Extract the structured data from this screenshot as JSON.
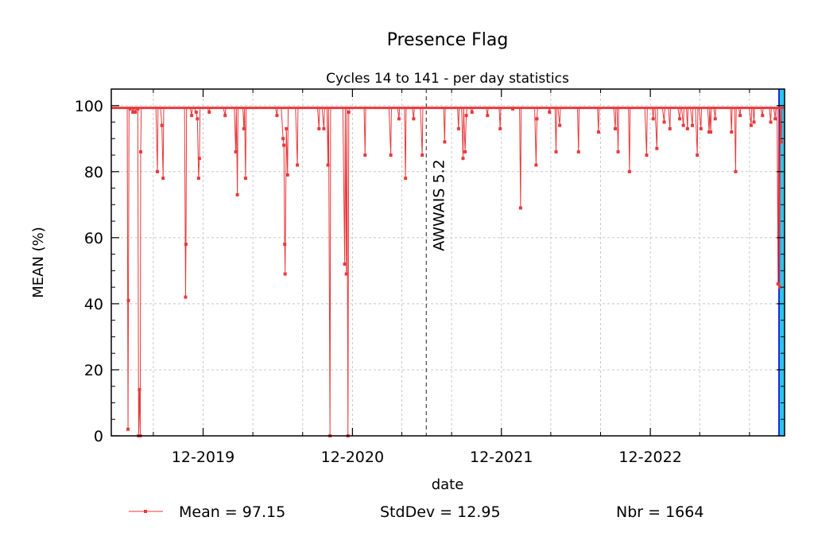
{
  "chart_data": {
    "type": "line",
    "title": "Presence Flag",
    "subtitle": "Cycles 14 to 141 - per day statistics",
    "xlabel": "date",
    "ylabel": "MEAN (%)",
    "ylim": [
      0,
      105
    ],
    "xlim": [
      "2019-04-20",
      "2023-10-26"
    ],
    "x_tick_labels": [
      "12-2019",
      "12-2020",
      "12-2021",
      "12-2022"
    ],
    "y_tick_labels": [
      "0",
      "20",
      "40",
      "60",
      "80",
      "100"
    ],
    "grid": true,
    "vertical_marker": {
      "label": "AWWAIS 5.2",
      "date": "2021-05-31"
    },
    "baseline_value": 99.3,
    "series": [
      {
        "name": "Mean",
        "color": "#e8393c",
        "points": [
          [
            "2019-05-31",
            2
          ],
          [
            "2019-06-01",
            41
          ],
          [
            "2019-06-05",
            99
          ],
          [
            "2019-06-12",
            98
          ],
          [
            "2019-06-18",
            98
          ],
          [
            "2019-06-24",
            99
          ],
          [
            "2019-06-26",
            0
          ],
          [
            "2019-06-28",
            14
          ],
          [
            "2019-06-30",
            0
          ],
          [
            "2019-07-01",
            86
          ],
          [
            "2019-08-11",
            80
          ],
          [
            "2019-08-22",
            94
          ],
          [
            "2019-08-25",
            78
          ],
          [
            "2019-10-19",
            42
          ],
          [
            "2019-10-20",
            58
          ],
          [
            "2019-11-03",
            97
          ],
          [
            "2019-11-14",
            98
          ],
          [
            "2019-11-17",
            96
          ],
          [
            "2019-11-20",
            78
          ],
          [
            "2019-11-22",
            84
          ],
          [
            "2019-12-16",
            98
          ],
          [
            "2020-01-24",
            97
          ],
          [
            "2020-02-19",
            86
          ],
          [
            "2020-02-23",
            73
          ],
          [
            "2020-03-10",
            93
          ],
          [
            "2020-03-14",
            78
          ],
          [
            "2020-05-30",
            97
          ],
          [
            "2020-06-14",
            90
          ],
          [
            "2020-06-16",
            88
          ],
          [
            "2020-06-18",
            58
          ],
          [
            "2020-06-19",
            49
          ],
          [
            "2020-06-22",
            93
          ],
          [
            "2020-06-25",
            79
          ],
          [
            "2020-07-19",
            82
          ],
          [
            "2020-09-10",
            93
          ],
          [
            "2020-09-22",
            93
          ],
          [
            "2020-10-02",
            82
          ],
          [
            "2020-10-07",
            0
          ],
          [
            "2020-11-12",
            52
          ],
          [
            "2020-11-16",
            49
          ],
          [
            "2020-11-20",
            0
          ],
          [
            "2020-11-22",
            98
          ],
          [
            "2021-01-01",
            85
          ],
          [
            "2021-03-05",
            85
          ],
          [
            "2021-03-25",
            96
          ],
          [
            "2021-04-10",
            78
          ],
          [
            "2021-04-30",
            96
          ],
          [
            "2021-05-21",
            85
          ],
          [
            "2021-07-15",
            89
          ],
          [
            "2021-08-18",
            93
          ],
          [
            "2021-08-29",
            84
          ],
          [
            "2021-09-03",
            86
          ],
          [
            "2021-09-06",
            97
          ],
          [
            "2021-09-20",
            98
          ],
          [
            "2021-10-28",
            97
          ],
          [
            "2021-11-28",
            93
          ],
          [
            "2021-12-29",
            99
          ],
          [
            "2022-01-17",
            69
          ],
          [
            "2022-02-24",
            82
          ],
          [
            "2022-02-26",
            96
          ],
          [
            "2022-03-29",
            98
          ],
          [
            "2022-04-14",
            86
          ],
          [
            "2022-04-23",
            94
          ],
          [
            "2022-06-08",
            86
          ],
          [
            "2022-07-27",
            92
          ],
          [
            "2022-09-06",
            93
          ],
          [
            "2022-09-13",
            86
          ],
          [
            "2022-10-11",
            80
          ],
          [
            "2022-11-22",
            85
          ],
          [
            "2022-12-08",
            96
          ],
          [
            "2022-12-17",
            87
          ],
          [
            "2023-01-04",
            95
          ],
          [
            "2023-01-18",
            93
          ],
          [
            "2023-02-11",
            96
          ],
          [
            "2023-02-20",
            94
          ],
          [
            "2023-03-02",
            93
          ],
          [
            "2023-03-14",
            94
          ],
          [
            "2023-03-26",
            85
          ],
          [
            "2023-04-04",
            93
          ],
          [
            "2023-04-24",
            92
          ],
          [
            "2023-04-28",
            92
          ],
          [
            "2023-05-09",
            96
          ],
          [
            "2023-06-18",
            92
          ],
          [
            "2023-06-28",
            80
          ],
          [
            "2023-07-09",
            97
          ],
          [
            "2023-08-05",
            94
          ],
          [
            "2023-08-12",
            95
          ],
          [
            "2023-09-02",
            97
          ],
          [
            "2023-09-22",
            95
          ],
          [
            "2023-10-03",
            96
          ],
          [
            "2023-10-10",
            46
          ],
          [
            "2023-10-14",
            45
          ],
          [
            "2023-10-18",
            89
          ]
        ]
      }
    ],
    "legend": {
      "position": "bottom",
      "mean_text": "Mean = 97.15",
      "stddev_text": "StdDev = 12.95",
      "nbr_text": "Nbr = 1664"
    }
  }
}
